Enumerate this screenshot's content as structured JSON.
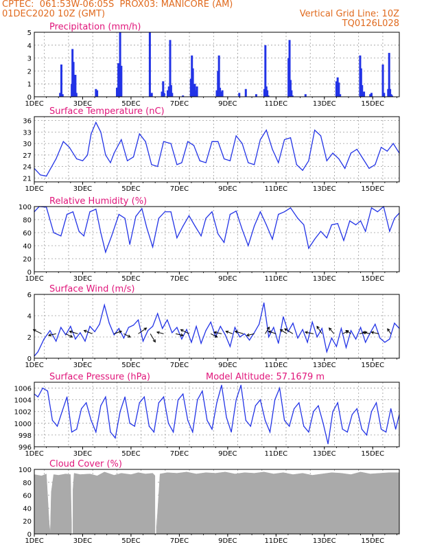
{
  "header": {
    "line1_left": "CPTEC:  061:53W-06:05S  PROX03: MANICORE (AM)",
    "line2_left": "01DEC2020 10Z (GMT)",
    "line2_right": "Vertical Grid Line: 10Z",
    "line3_right": "TQ0126L028"
  },
  "colors": {
    "header": "#e06a1e",
    "title": "#e0157a",
    "series": "#2233e6",
    "grid": "#9a9a9a",
    "cloud": "#aaaaaa",
    "wind_arrows": "#000000"
  },
  "chart_data": [
    {
      "id": "precip",
      "type": "bar",
      "title": "Precipitation (mm/h)",
      "x_unit": "day of December 2020 (decimal)",
      "xlim": [
        1,
        16.1
      ],
      "ylim": [
        0,
        5
      ],
      "yticks": [
        "0",
        "1",
        "2",
        "3",
        "4",
        "5"
      ],
      "xticks": [
        "1DEC",
        "3DEC",
        "5DEC",
        "7DEC",
        "9DEC",
        "11DEC",
        "13DEC",
        "15DEC"
      ],
      "grid": true,
      "x": [
        2.07,
        2.12,
        2.17,
        2.55,
        2.58,
        2.62,
        2.66,
        2.7,
        2.74,
        3.55,
        3.6,
        4.42,
        4.48,
        4.55,
        4.57,
        4.6,
        5.78,
        5.82,
        5.86,
        6.28,
        6.33,
        6.37,
        6.52,
        6.57,
        6.62,
        6.66,
        6.7,
        7.15,
        7.48,
        7.52,
        7.56,
        7.6,
        7.64,
        7.68,
        7.73,
        8.55,
        8.6,
        8.64,
        8.68,
        8.72,
        8.78,
        9.48,
        9.75,
        10.18,
        10.52,
        10.56,
        10.6,
        10.64,
        10.68,
        11.52,
        11.56,
        11.6,
        11.64,
        11.68,
        12.22,
        13.5,
        13.55,
        13.6,
        13.65,
        14.48,
        14.52,
        14.56,
        14.6,
        14.64,
        14.9,
        14.95,
        15.42,
        15.47,
        15.64,
        15.68,
        15.72,
        15.76,
        15.8
      ],
      "values": [
        0.3,
        2.5,
        0.2,
        1.0,
        3.7,
        2.7,
        1.7,
        1.7,
        0.3,
        0.6,
        0.5,
        0.7,
        2.6,
        5.0,
        1.3,
        2.4,
        5.0,
        0.2,
        0.3,
        0.4,
        1.2,
        0.3,
        0.5,
        0.8,
        4.4,
        0.9,
        0.3,
        0.1,
        1.4,
        3.2,
        2.2,
        0.6,
        1.0,
        0.5,
        0.8,
        0.5,
        2.0,
        3.2,
        0.7,
        0.4,
        0.5,
        0.3,
        0.6,
        0.2,
        0.6,
        4.0,
        0.8,
        0.5,
        0.1,
        3.0,
        4.4,
        1.3,
        0.5,
        0.1,
        0.2,
        1.2,
        1.5,
        1.1,
        0.2,
        3.2,
        2.2,
        0.9,
        0.2,
        0.4,
        0.2,
        0.3,
        2.5,
        0.3,
        0.6,
        3.4,
        0.6,
        0.2,
        0.1
      ]
    },
    {
      "id": "temp",
      "type": "line",
      "title": "Surface Temperature (nC)",
      "x_unit": "day of December 2020 (decimal)",
      "xlim": [
        1,
        16.1
      ],
      "ylim": [
        20,
        37
      ],
      "yticks": [
        "21",
        "24",
        "27",
        "30",
        "33",
        "36"
      ],
      "xticks": [
        "1DEC",
        "3DEC",
        "5DEC",
        "7DEC",
        "9DEC",
        "11DEC",
        "13DEC",
        "15DEC"
      ],
      "grid": true,
      "x": [
        1.0,
        1.25,
        1.5,
        1.9,
        2.2,
        2.45,
        2.75,
        3.0,
        3.2,
        3.35,
        3.55,
        3.75,
        3.95,
        4.15,
        4.3,
        4.6,
        4.85,
        5.1,
        5.35,
        5.6,
        5.85,
        6.1,
        6.35,
        6.65,
        6.9,
        7.1,
        7.35,
        7.6,
        7.85,
        8.1,
        8.35,
        8.6,
        8.85,
        9.1,
        9.35,
        9.6,
        9.85,
        10.1,
        10.35,
        10.6,
        10.85,
        11.1,
        11.35,
        11.6,
        11.85,
        12.1,
        12.35,
        12.6,
        12.85,
        13.1,
        13.35,
        13.6,
        13.85,
        14.1,
        14.35,
        14.6,
        14.85,
        15.1,
        15.35,
        15.6,
        15.85,
        16.1
      ],
      "values": [
        23.5,
        21.8,
        21.5,
        26.0,
        30.5,
        29.0,
        26.0,
        25.5,
        27.0,
        32.5,
        35.5,
        33.0,
        27.0,
        25.0,
        27.5,
        31.0,
        25.5,
        26.5,
        32.5,
        30.5,
        24.5,
        24.0,
        30.5,
        30.0,
        24.5,
        25.0,
        30.5,
        29.5,
        25.5,
        25.0,
        30.5,
        30.5,
        26.0,
        25.5,
        32.0,
        30.0,
        25.0,
        24.5,
        31.0,
        33.5,
        28.5,
        25.0,
        31.0,
        31.5,
        24.5,
        23.0,
        25.5,
        33.5,
        32.0,
        25.5,
        27.5,
        26.0,
        23.5,
        27.5,
        28.5,
        26.0,
        23.5,
        24.5,
        29.0,
        28.0,
        30.0,
        27.5
      ]
    },
    {
      "id": "rh",
      "type": "line",
      "title": "Relative Humidity (%)",
      "x_unit": "day of December 2020 (decimal)",
      "xlim": [
        1,
        16.1
      ],
      "ylim": [
        0,
        100
      ],
      "yticks": [
        "0",
        "20",
        "40",
        "60",
        "80",
        "100"
      ],
      "xticks": [
        "1DEC",
        "3DEC",
        "5DEC",
        "7DEC",
        "9DEC",
        "11DEC",
        "13DEC",
        "15DEC"
      ],
      "grid": true,
      "x": [
        1.0,
        1.2,
        1.5,
        1.8,
        2.1,
        2.35,
        2.6,
        2.85,
        3.05,
        3.3,
        3.55,
        3.75,
        3.95,
        4.2,
        4.5,
        4.75,
        4.95,
        5.2,
        5.45,
        5.65,
        5.9,
        6.15,
        6.4,
        6.65,
        6.9,
        7.15,
        7.4,
        7.65,
        7.9,
        8.1,
        8.35,
        8.6,
        8.85,
        9.1,
        9.35,
        9.6,
        9.85,
        10.1,
        10.35,
        10.6,
        10.85,
        11.1,
        11.35,
        11.6,
        11.9,
        12.15,
        12.35,
        12.6,
        12.85,
        13.1,
        13.3,
        13.55,
        13.8,
        14.05,
        14.3,
        14.5,
        14.7,
        14.95,
        15.2,
        15.45,
        15.7,
        15.9,
        16.1
      ],
      "values": [
        92,
        100,
        99,
        60,
        55,
        88,
        92,
        62,
        55,
        92,
        96,
        60,
        30,
        55,
        88,
        82,
        42,
        85,
        97,
        68,
        38,
        82,
        92,
        92,
        52,
        70,
        86,
        70,
        55,
        82,
        92,
        58,
        45,
        88,
        93,
        65,
        40,
        70,
        92,
        72,
        50,
        88,
        92,
        98,
        82,
        72,
        36,
        50,
        62,
        52,
        72,
        74,
        48,
        78,
        72,
        78,
        62,
        98,
        92,
        100,
        62,
        82,
        90
      ]
    },
    {
      "id": "wind",
      "type": "line",
      "title": "Surface Wind (m/s)",
      "x_unit": "day of December 2020 (decimal)",
      "xlim": [
        1,
        16.1
      ],
      "ylim": [
        0,
        6
      ],
      "yticks": [
        "0",
        "2",
        "4",
        "6"
      ],
      "xticks": [
        "1DEC",
        "3DEC",
        "5DEC",
        "7DEC",
        "9DEC",
        "11DEC",
        "13DEC",
        "15DEC"
      ],
      "grid": true,
      "x": [
        1.0,
        1.15,
        1.4,
        1.65,
        1.9,
        2.1,
        2.3,
        2.5,
        2.7,
        2.9,
        3.1,
        3.3,
        3.5,
        3.7,
        3.9,
        4.1,
        4.3,
        4.5,
        4.7,
        4.9,
        5.1,
        5.3,
        5.5,
        5.7,
        5.9,
        6.1,
        6.3,
        6.5,
        6.7,
        6.9,
        7.1,
        7.3,
        7.5,
        7.7,
        7.9,
        8.1,
        8.3,
        8.5,
        8.7,
        8.9,
        9.1,
        9.3,
        9.5,
        9.7,
        9.9,
        10.1,
        10.3,
        10.5,
        10.7,
        10.9,
        11.1,
        11.3,
        11.5,
        11.7,
        11.9,
        12.1,
        12.3,
        12.5,
        12.7,
        12.9,
        13.1,
        13.3,
        13.5,
        13.7,
        13.9,
        14.1,
        14.3,
        14.5,
        14.7,
        14.9,
        15.1,
        15.3,
        15.5,
        15.7,
        15.9,
        16.1
      ],
      "values": [
        0.2,
        0.6,
        1.8,
        2.6,
        1.6,
        2.9,
        2.2,
        3.0,
        1.8,
        2.4,
        1.6,
        3.0,
        2.5,
        3.2,
        5.0,
        3.3,
        2.2,
        2.8,
        1.9,
        2.9,
        3.1,
        3.6,
        1.6,
        2.6,
        3.0,
        4.2,
        2.8,
        3.6,
        2.4,
        2.9,
        1.8,
        2.7,
        1.5,
        3.0,
        1.4,
        2.6,
        3.4,
        2.0,
        3.0,
        2.2,
        1.1,
        2.9,
        2.0,
        2.3,
        1.7,
        2.4,
        3.2,
        5.2,
        2.0,
        2.9,
        1.4,
        3.9,
        2.5,
        3.3,
        1.9,
        2.7,
        1.5,
        3.4,
        2.0,
        2.8,
        0.6,
        1.9,
        1.1,
        2.8,
        1.0,
        2.6,
        1.8,
        2.9,
        1.5,
        2.4,
        3.2,
        1.9,
        1.5,
        1.8,
        3.3,
        2.8
      ]
    },
    {
      "id": "pressure",
      "type": "line",
      "title": "Surface Pressure (hPa)",
      "annotation": "Model Altitude: 57.1679 m",
      "x_unit": "day of December 2020 (decimal)",
      "xlim": [
        1,
        16.1
      ],
      "ylim": [
        996,
        1007
      ],
      "yticks": [
        "996",
        "998",
        "1000",
        "1002",
        "1004",
        "1006"
      ],
      "xticks": [
        "1DEC",
        "3DEC",
        "5DEC",
        "7DEC",
        "9DEC",
        "11DEC",
        "13DEC",
        "15DEC"
      ],
      "grid": true,
      "x": [
        1.0,
        1.15,
        1.35,
        1.55,
        1.75,
        1.95,
        2.15,
        2.35,
        2.55,
        2.75,
        2.95,
        3.15,
        3.35,
        3.55,
        3.75,
        3.95,
        4.15,
        4.35,
        4.55,
        4.75,
        4.95,
        5.15,
        5.35,
        5.55,
        5.75,
        5.95,
        6.15,
        6.35,
        6.55,
        6.75,
        6.95,
        7.15,
        7.35,
        7.55,
        7.75,
        7.95,
        8.15,
        8.35,
        8.55,
        8.75,
        8.95,
        9.15,
        9.35,
        9.55,
        9.75,
        9.95,
        10.15,
        10.35,
        10.55,
        10.75,
        10.95,
        11.15,
        11.35,
        11.55,
        11.75,
        11.95,
        12.15,
        12.35,
        12.55,
        12.75,
        12.95,
        13.15,
        13.35,
        13.55,
        13.75,
        13.95,
        14.15,
        14.35,
        14.55,
        14.75,
        14.95,
        15.15,
        15.35,
        15.55,
        15.75,
        15.95,
        16.1
      ],
      "values": [
        1005.0,
        1004.5,
        1006.0,
        1005.5,
        1000.5,
        999.5,
        1002.0,
        1004.5,
        998.5,
        999.0,
        1002.5,
        1003.5,
        1000.5,
        998.5,
        1003.0,
        1004.5,
        998.5,
        997.5,
        1002.0,
        1004.5,
        1000.0,
        999.5,
        1003.5,
        1004.5,
        999.5,
        998.5,
        1003.5,
        1004.5,
        1000.0,
        998.5,
        1004.0,
        1005.0,
        1000.5,
        998.5,
        1004.0,
        1005.5,
        1000.5,
        999.0,
        1003.5,
        1006.5,
        1001.0,
        998.5,
        1004.0,
        1006.5,
        1000.5,
        999.5,
        1003.0,
        1004.0,
        1000.5,
        998.5,
        1004.0,
        1006.0,
        1000.5,
        999.5,
        1002.5,
        1003.5,
        999.5,
        998.5,
        1002.0,
        1003.0,
        1000.0,
        996.5,
        1002.0,
        1003.5,
        999.0,
        998.5,
        1001.5,
        1002.5,
        999.0,
        998.0,
        1002.0,
        1003.5,
        999.0,
        998.5,
        1002.5,
        999.0,
        1001.5
      ]
    },
    {
      "id": "cloud",
      "type": "area",
      "title": "Cloud Cover (%)",
      "x_unit": "day of December 2020 (decimal)",
      "xlim": [
        1,
        16.1
      ],
      "ylim": [
        0,
        100
      ],
      "yticks": [
        "0",
        "20",
        "40",
        "60",
        "80",
        "100"
      ],
      "xticks": [
        "1DEC",
        "3DEC",
        "5DEC",
        "7DEC",
        "9DEC",
        "11DEC",
        "13DEC",
        "15DEC"
      ],
      "grid": true,
      "x": [
        1.0,
        1.3,
        1.5,
        1.62,
        1.66,
        1.7,
        1.8,
        2.0,
        2.3,
        2.5,
        2.54,
        2.58,
        2.65,
        2.9,
        3.3,
        3.6,
        3.9,
        4.3,
        4.6,
        5.0,
        5.3,
        5.6,
        5.9,
        6.0,
        6.05,
        6.2,
        6.5,
        6.9,
        7.3,
        7.7,
        8.1,
        8.5,
        8.9,
        9.3,
        9.7,
        10.1,
        10.5,
        10.9,
        11.3,
        11.7,
        12.1,
        12.5,
        12.9,
        13.3,
        13.7,
        14.1,
        14.5,
        14.9,
        15.3,
        15.7,
        16.1
      ],
      "values": [
        92,
        90,
        93,
        15,
        2,
        65,
        92,
        91,
        93,
        92,
        10,
        60,
        94,
        92,
        93,
        90,
        96,
        91,
        94,
        92,
        95,
        93,
        94,
        90,
        4,
        93,
        95,
        94,
        96,
        93,
        95,
        94,
        96,
        93,
        95,
        94,
        96,
        93,
        95,
        92,
        94,
        91,
        93,
        95,
        94,
        92,
        96,
        93,
        94,
        95,
        95
      ]
    }
  ],
  "wind_arrows": {
    "x": [
      1.3,
      1.9,
      2.3,
      2.8,
      3.4,
      4.3,
      4.7,
      5.3,
      5.8,
      6.35,
      6.85,
      7.4,
      8.3,
      8.75,
      9.2,
      9.65,
      10.1,
      10.55,
      11.0,
      11.45,
      11.7,
      12.55,
      12.9,
      13.4,
      13.75,
      14.1,
      14.45,
      14.9,
      15.25,
      15.75
    ],
    "u": [
      -1.0,
      -0.9,
      0.8,
      -1.0,
      -1.0,
      0.9,
      0.8,
      1.0,
      0.6,
      -0.8,
      0.9,
      -1.0,
      0.8,
      -0.9,
      -0.8,
      -1.0,
      -0.9,
      0.5,
      -0.9,
      -0.8,
      -1.0,
      -1.0,
      -0.6,
      -0.6,
      0.7,
      -0.6,
      0.9,
      -0.9,
      -0.9,
      -0.4
    ],
    "v": [
      0.5,
      -0.2,
      -0.4,
      0.3,
      0.4,
      0.3,
      -0.4,
      0.7,
      -1.0,
      0.2,
      -0.2,
      0.5,
      -0.4,
      0.2,
      0.3,
      0.3,
      -0.2,
      0.8,
      0.3,
      0.5,
      0.6,
      0.2,
      0.9,
      0.7,
      0.3,
      0.4,
      0.2,
      0.2,
      0.2,
      0.6
    ]
  }
}
